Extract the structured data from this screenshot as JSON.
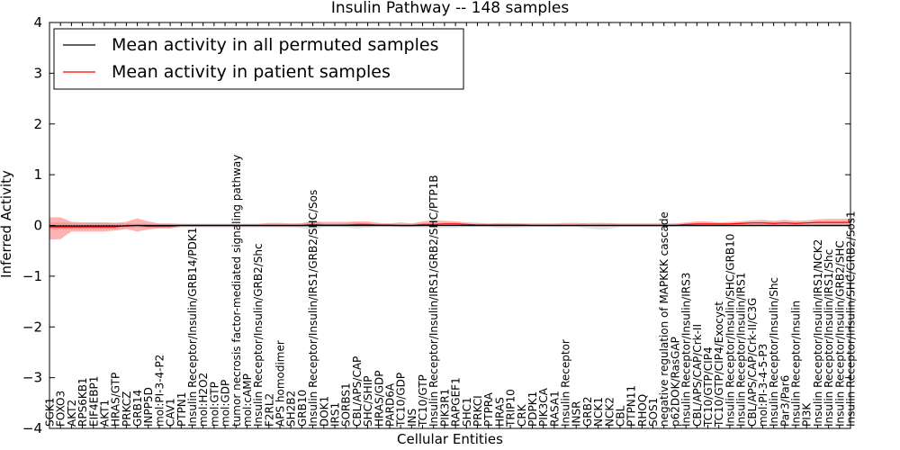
{
  "chart_data": {
    "type": "line",
    "title": "Insulin Pathway -- 148 samples",
    "xlabel": "Cellular Entities",
    "ylabel": "Inferred Activity",
    "ylim": [
      -4,
      4
    ],
    "yticks": [
      -4,
      -3,
      -2,
      -1,
      0,
      1,
      2,
      3,
      4
    ],
    "ytick_labels": [
      "−4",
      "−3",
      "−2",
      "−1",
      "0",
      "1",
      "2",
      "3",
      "4"
    ],
    "legend_location": "top-left",
    "categories": [
      "SGK1",
      "FOXO3",
      "AKT2",
      "RPS6KB1",
      "EIF4EBP1",
      "AKT1",
      "HRAS/GTP",
      "PRKCZ",
      "GRB14",
      "INPP5D",
      "mol:PI-3-4-P2",
      "CAV1",
      "PTPN1",
      "Insulin Receptor/Insulin/GRB14/PDK1",
      "mol:H2O2",
      "mol:GTP",
      "mol:GDP",
      "tumor necrosis factor-mediated signaling pathway",
      "mol:cAMP",
      "Insulin Receptor/Insulin/GRB2/Shc",
      "F2RL2",
      "APS homodimer",
      "SH2B2",
      "GRB10",
      "Insulin Receptor/Insulin/IRS1/GRB2/SHC/Sos",
      "DOK1",
      "IRS1",
      "SORBS1",
      "CBL/APS/CAP",
      "SHC/SHIP",
      "HRAS/GDP",
      "PARD6A",
      "TC10/GDP",
      "INS",
      "TC10/GTP",
      "Insulin Receptor/Insulin/IRS1/GRB2/SHC/PTP1B",
      "PIK3R1",
      "RAPGEF1",
      "SHC1",
      "PRKCI",
      "PTPRA",
      "HRAS",
      "TRIP10",
      "CRK",
      "PDPK1",
      "PIK3CA",
      "RASA1",
      "Insulin Receptor",
      "INSR",
      "GRB2",
      "NCK1",
      "NCK2",
      "CBL",
      "PTPN11",
      "RHOQ",
      "SOS1",
      "negative regulation of MAPKKK cascade",
      "p62DOK/RasGAP",
      "Insulin Receptor/Insulin/IRS3",
      "CBL/APS/CAP/Crk-II",
      "TC10/GTP/CIP4",
      "TC10/GTP/CIP4/Exocyst",
      "Insulin Receptor/Insulin/SHC/GRB10",
      "Insulin Receptor/Insulin/IRS1",
      "CBL/APS/CAP/Crk-II/C3G",
      "mol:PI-3-4-5-P3",
      "Insulin Receptor/Insulin/Shc",
      "Par3/Par6",
      "Insulin Receptor/Insulin",
      "PI3K",
      "Insulin Receptor/Insulin/IRS1/NCK2",
      "Insulin Receptor/Insulin/IRS1/Shc",
      "Insulin Receptor/Insulin/GRB2/SHC",
      "Insulin Receptor/Insulin/SHC/GRB2/Sos1"
    ],
    "series": [
      {
        "name": "Mean activity in all permuted samples",
        "color": "#000000",
        "values": [
          -0.01,
          -0.01,
          -0.01,
          -0.01,
          -0.01,
          -0.01,
          -0.01,
          -0.01,
          0.0,
          0.0,
          0.0,
          0.0,
          0.0,
          0.0,
          0.0,
          0.0,
          0.0,
          0.0,
          0.0,
          0.0,
          0.0,
          0.0,
          0.0,
          0.0,
          0.0,
          0.0,
          0.0,
          0.0,
          0.0,
          0.0,
          0.0,
          0.0,
          0.0,
          0.0,
          0.0,
          0.0,
          0.0,
          0.0,
          0.0,
          0.0,
          0.0,
          0.0,
          0.0,
          0.0,
          0.0,
          0.0,
          0.0,
          0.0,
          0.0,
          0.0,
          0.0,
          0.0,
          0.0,
          0.0,
          0.0,
          0.0,
          0.0,
          0.0,
          0.0,
          0.0,
          0.0,
          0.0,
          0.0,
          0.0,
          0.0,
          0.0,
          0.0,
          0.0,
          0.0,
          0.0,
          0.0,
          0.0,
          0.0,
          0.0
        ],
        "band_lower": [
          -0.08,
          -0.08,
          -0.08,
          -0.07,
          -0.07,
          -0.07,
          -0.07,
          -0.05,
          -0.04,
          -0.04,
          -0.03,
          -0.03,
          -0.03,
          -0.03,
          -0.03,
          -0.03,
          -0.03,
          -0.03,
          -0.03,
          -0.03,
          -0.03,
          -0.03,
          -0.03,
          -0.05,
          -0.1,
          -0.03,
          -0.03,
          -0.04,
          -0.06,
          -0.04,
          -0.03,
          -0.03,
          -0.03,
          -0.03,
          -0.04,
          -0.04,
          -0.05,
          -0.05,
          -0.03,
          -0.03,
          -0.03,
          -0.05,
          -0.05,
          -0.04,
          -0.03,
          -0.03,
          -0.03,
          -0.03,
          -0.03,
          -0.05,
          -0.08,
          -0.07,
          -0.03,
          -0.03,
          -0.03,
          -0.03,
          -0.03,
          -0.03,
          -0.03,
          -0.03,
          -0.03,
          -0.03,
          -0.03,
          -0.03,
          -0.03,
          -0.03,
          -0.03,
          -0.03,
          -0.03,
          -0.03,
          -0.03,
          -0.03,
          -0.03,
          -0.03
        ],
        "band_upper": [
          0.06,
          0.06,
          0.05,
          0.05,
          0.05,
          0.05,
          0.05,
          0.04,
          0.04,
          0.03,
          0.03,
          0.03,
          0.03,
          0.03,
          0.03,
          0.03,
          0.03,
          0.03,
          0.03,
          0.03,
          0.03,
          0.03,
          0.03,
          0.05,
          0.09,
          0.04,
          0.03,
          0.05,
          0.06,
          0.04,
          0.03,
          0.03,
          0.03,
          0.03,
          0.04,
          0.04,
          0.05,
          0.05,
          0.03,
          0.03,
          0.03,
          0.05,
          0.05,
          0.04,
          0.03,
          0.03,
          0.03,
          0.03,
          0.03,
          0.05,
          0.06,
          0.05,
          0.03,
          0.03,
          0.03,
          0.03,
          0.03,
          0.03,
          0.03,
          0.03,
          0.03,
          0.03,
          0.03,
          0.03,
          0.03,
          0.03,
          0.03,
          0.03,
          0.03,
          0.03,
          0.03,
          0.03,
          0.03,
          0.03
        ]
      },
      {
        "name": "Mean activity in patient samples",
        "color": "#ff0000",
        "values": [
          -0.03,
          -0.03,
          -0.03,
          -0.03,
          -0.03,
          -0.03,
          -0.03,
          0.0,
          0.0,
          -0.02,
          -0.02,
          -0.02,
          0.0,
          0.0,
          0.0,
          0.0,
          0.0,
          0.0,
          0.0,
          0.0,
          0.0,
          0.0,
          0.0,
          0.0,
          0.02,
          0.01,
          0.01,
          0.01,
          0.02,
          0.02,
          0.01,
          0.01,
          0.0,
          0.0,
          0.02,
          0.02,
          0.03,
          0.03,
          0.02,
          0.01,
          0.01,
          0.01,
          0.01,
          0.01,
          0.0,
          0.0,
          0.0,
          0.0,
          0.0,
          0.0,
          0.0,
          0.0,
          0.0,
          0.0,
          0.0,
          0.0,
          0.0,
          0.0,
          0.02,
          0.03,
          0.03,
          0.03,
          0.03,
          0.04,
          0.05,
          0.05,
          0.04,
          0.05,
          0.04,
          0.05,
          0.06,
          0.06,
          0.06,
          0.06
        ],
        "band_lower": [
          -0.28,
          -0.27,
          -0.12,
          -0.12,
          -0.12,
          -0.12,
          -0.1,
          -0.07,
          -0.12,
          -0.08,
          -0.06,
          -0.06,
          -0.03,
          -0.03,
          -0.03,
          -0.03,
          -0.03,
          -0.03,
          -0.03,
          -0.03,
          -0.03,
          -0.03,
          -0.03,
          -0.03,
          -0.02,
          -0.02,
          -0.02,
          -0.02,
          -0.02,
          -0.02,
          -0.02,
          -0.02,
          -0.03,
          -0.03,
          -0.02,
          -0.02,
          -0.01,
          -0.01,
          -0.02,
          -0.02,
          -0.02,
          -0.02,
          -0.02,
          -0.02,
          -0.02,
          -0.02,
          -0.02,
          -0.02,
          -0.02,
          -0.02,
          -0.02,
          -0.02,
          -0.02,
          -0.02,
          -0.02,
          -0.02,
          -0.02,
          -0.02,
          -0.02,
          -0.02,
          -0.02,
          -0.02,
          -0.02,
          -0.02,
          -0.02,
          -0.02,
          -0.02,
          -0.02,
          -0.02,
          -0.02,
          -0.02,
          -0.02,
          -0.02,
          -0.02
        ],
        "band_upper": [
          0.16,
          0.16,
          0.07,
          0.06,
          0.06,
          0.06,
          0.05,
          0.07,
          0.14,
          0.08,
          0.04,
          0.04,
          0.03,
          0.03,
          0.03,
          0.03,
          0.03,
          0.03,
          0.03,
          0.03,
          0.05,
          0.05,
          0.04,
          0.04,
          0.08,
          0.07,
          0.07,
          0.07,
          0.08,
          0.08,
          0.05,
          0.04,
          0.06,
          0.04,
          0.08,
          0.1,
          0.09,
          0.08,
          0.06,
          0.05,
          0.04,
          0.04,
          0.04,
          0.04,
          0.04,
          0.04,
          0.04,
          0.05,
          0.05,
          0.04,
          0.04,
          0.04,
          0.04,
          0.04,
          0.04,
          0.04,
          0.04,
          0.04,
          0.06,
          0.08,
          0.08,
          0.06,
          0.07,
          0.08,
          0.1,
          0.11,
          0.09,
          0.11,
          0.09,
          0.1,
          0.12,
          0.13,
          0.13,
          0.13
        ]
      }
    ]
  }
}
